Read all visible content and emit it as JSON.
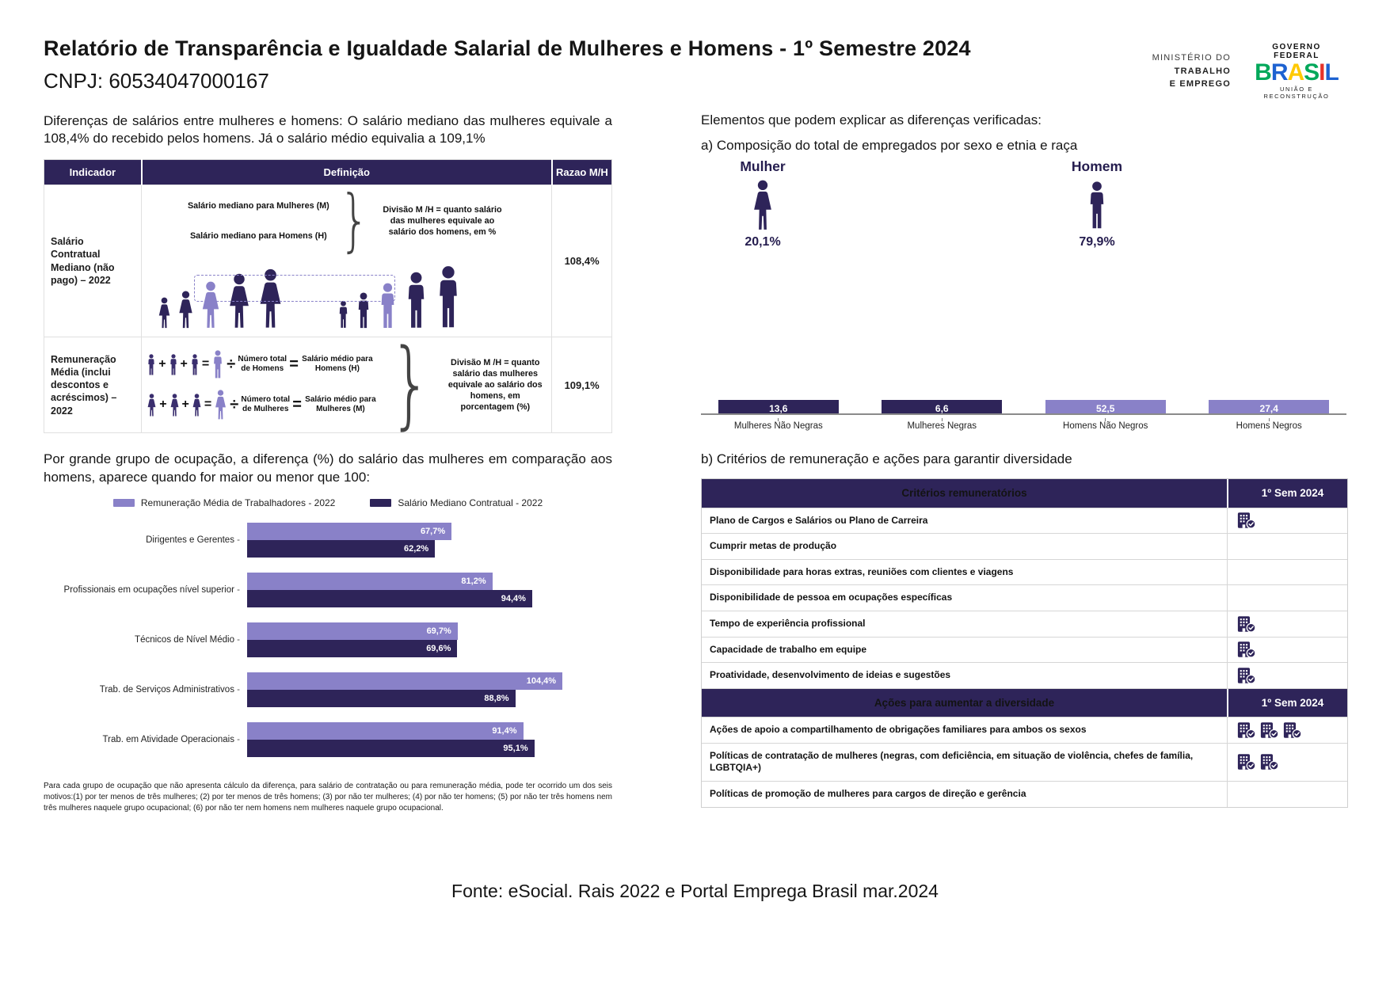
{
  "header": {
    "title": "Relatório de Transparência e Igualdade Salarial de Mulheres e Homens - 1º Semestre 2024",
    "cnpj": "CNPJ: 60534047000167",
    "ministry_line1": "MINISTÉRIO DO",
    "ministry_line2": "TRABALHO",
    "ministry_line3": "E EMPREGO",
    "gov_top": "GOVERNO FEDERAL",
    "gov_brand": "BRASIL",
    "gov_bottom": "UNIÃO E RECONSTRUÇÃO"
  },
  "left": {
    "intro": "Diferenças de salários entre mulheres e homens: O salário mediano das mulheres equivale a 108,4% do recebido pelos homens. Já o salário médio equivalia a 109,1%",
    "table": {
      "headers": [
        "Indicador",
        "Definição",
        "Razao M/H"
      ],
      "row1": {
        "indicator": "Salário Contratual Mediano (não pago) – 2022",
        "line_women": "Salário mediano para Mulheres (M)",
        "line_men": "Salário mediano para Homens (H)",
        "note": "Divisão M /H = quanto salário das mulheres equivale ao salário dos homens, em %",
        "ratio": "108,4%"
      },
      "row2": {
        "indicator": "Remuneração Média (inclui descontos e acréscimos) – 2022",
        "men_count": "Número total de Homens",
        "men_avg": "Salário médio para Homens (H)",
        "women_count": "Número total de Mulheres",
        "women_avg": "Salário médio para Mulheres (M)",
        "note": "Divisão M /H = quanto salário das mulheres equivale ao salário dos homens, em porcentagem (%)",
        "ratio": "109,1%"
      }
    },
    "chart_intro": "Por grande grupo de ocupação, a diferença (%) do salário das mulheres em comparação aos homens, aparece quando for maior ou menor que 100:",
    "footnote": "Para cada grupo de ocupação que não apresenta cálculo da diferença, para salário de contratação ou para remuneração média, pode ter ocorrido um dos seis motivos:(1) por ter menos de três mulheres; (2) por ter menos de três homens; (3) por não ter mulheres; (4) por não ter homens; (5) por não ter três homens nem três mulheres naquele grupo ocupacional; (6) por não ter nem homens nem mulheres naquele grupo ocupacional."
  },
  "right": {
    "heading": "Elementos que podem explicar as diferenças verificadas:",
    "sub_a": "a) Composição do total de empregados por sexo e etnia e raça",
    "mulher_label": "Mulher",
    "mulher_pct": "20,1%",
    "homem_label": "Homem",
    "homem_pct": "79,9%",
    "sub_b": "b) Critérios de remuneração e ações para garantir diversidade",
    "criteria_table": {
      "header": "Critérios remuneratórios",
      "period": "1º Sem 2024",
      "rows": [
        {
          "label": "Plano de Cargos e Salários ou Plano de Carreira",
          "checks": 1
        },
        {
          "label": "Cumprir metas de produção",
          "checks": 0
        },
        {
          "label": "Disponibilidade para horas extras, reuniões com clientes e viagens",
          "checks": 0
        },
        {
          "label": "Disponibilidade de pessoa em ocupações específicas",
          "checks": 0
        },
        {
          "label": "Tempo de experiência profissional",
          "checks": 1
        },
        {
          "label": "Capacidade de trabalho em equipe",
          "checks": 1
        },
        {
          "label": "Proatividade, desenvolvimento de ideias e sugestões",
          "checks": 1
        }
      ]
    },
    "actions_table": {
      "header": "Ações para aumentar a diversidade",
      "period": "1º Sem 2024",
      "rows": [
        {
          "label": "Ações de apoio a compartilhamento de obrigações familiares para ambos os sexos",
          "checks": 3
        },
        {
          "label": "Políticas de contratação de mulheres (negras, com deficiência, em situação de violência, chefes de família, LGBTQIA+)",
          "checks": 2
        },
        {
          "label": "Políticas de promoção de mulheres para cargos de direção e gerência",
          "checks": 0
        }
      ]
    }
  },
  "footer": "Fonte: eSocial. Rais 2022 e Portal Emprega Brasil mar.2024",
  "colors": {
    "dark_purple": "#2E2459",
    "light_purple": "#8981C8"
  },
  "chart_data": [
    {
      "type": "bar",
      "orientation": "horizontal",
      "title": "Diferença (%) do salário das mulheres em comparação aos homens por grande grupo de ocupação",
      "categories": [
        "Dirigentes e Gerentes",
        "Profissionais em ocupações nível superior",
        "Técnicos de Nível Médio",
        "Trab. de Serviços Administrativos",
        "Trab. em Atividade Operacionais"
      ],
      "series": [
        {
          "name": "Remuneração Média de Trabalhadores - 2022",
          "color": "#8981C8",
          "values": [
            67.7,
            81.2,
            69.7,
            104.4,
            91.4
          ]
        },
        {
          "name": "Salário Mediano Contratual - 2022",
          "color": "#2E2459",
          "values": [
            62.2,
            94.4,
            69.6,
            88.8,
            95.1
          ]
        }
      ],
      "value_suffix": "%",
      "xlim": [
        0,
        107
      ],
      "grid": false,
      "legend_position": "top"
    },
    {
      "type": "bar",
      "orientation": "vertical",
      "title": "Composição do total de empregados por sexo e etnia e raça",
      "categories": [
        "Mulheres Não Negras",
        "Mulheres Negras",
        "Homens Não Negros",
        "Homens Negros"
      ],
      "values": [
        13.6,
        6.6,
        52.5,
        27.4
      ],
      "bar_colors": [
        "#2E2459",
        "#2E2459",
        "#8981C8",
        "#8981C8"
      ],
      "ylim": [
        0,
        56
      ],
      "grid": false,
      "legend_position": "none"
    }
  ]
}
